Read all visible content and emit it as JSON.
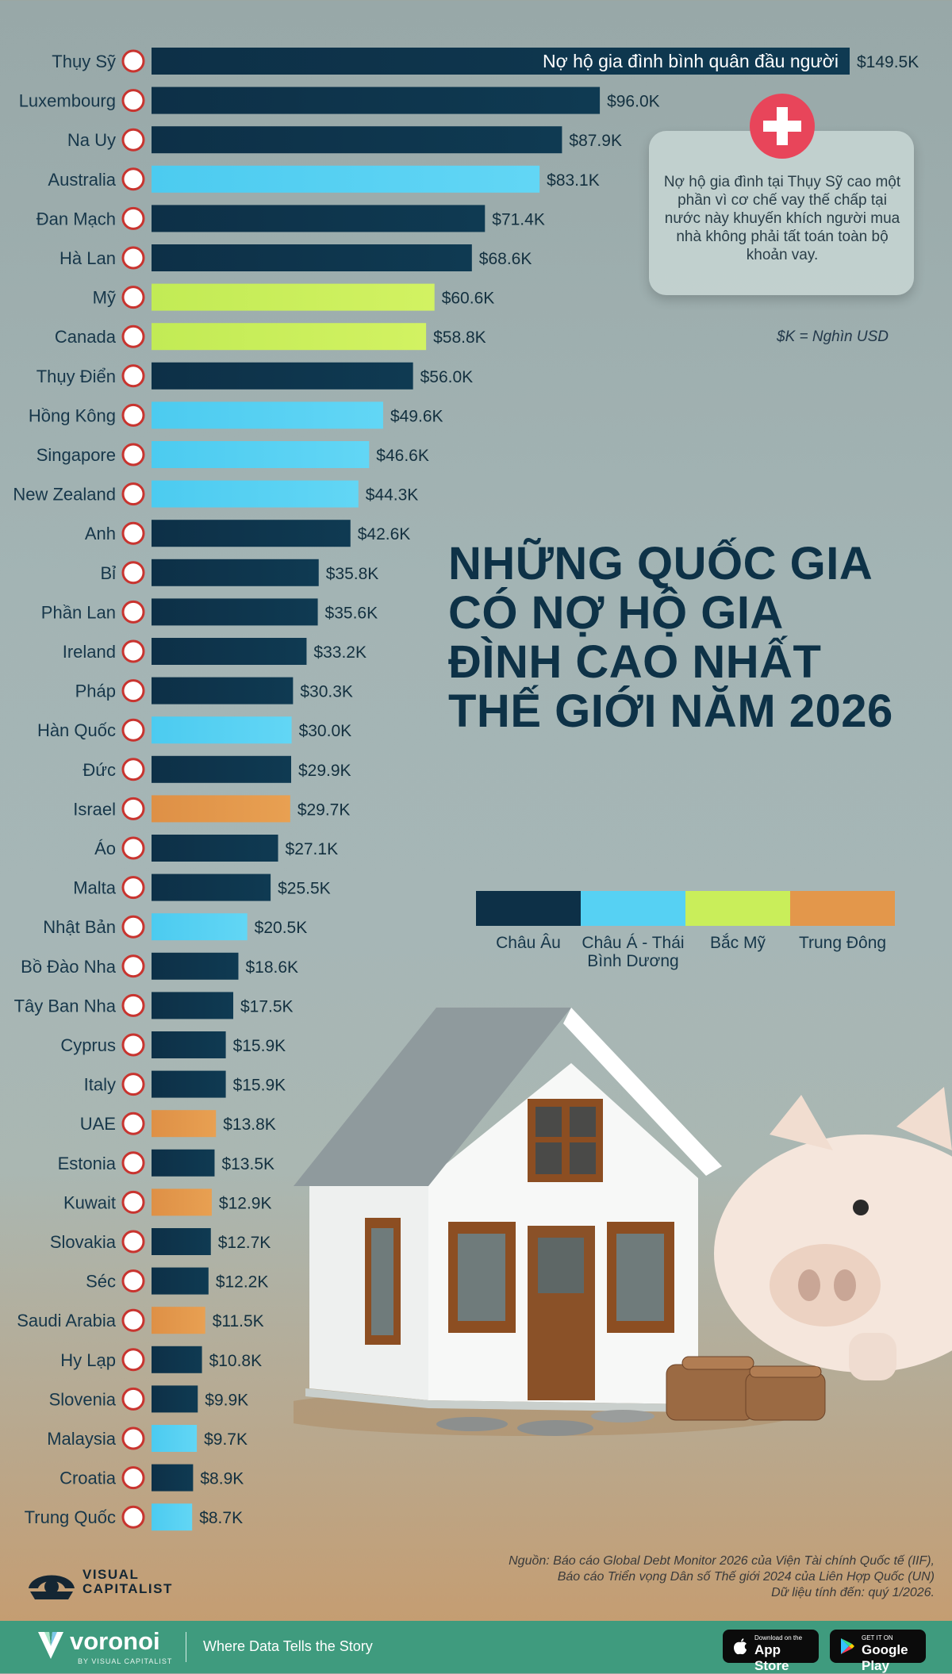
{
  "chart_data": {
    "type": "bar",
    "orientation": "horizontal",
    "title": "NHỮNG QUỐC GIA CÓ NỢ HỘ GIA ĐÌNH CAO NHẤT THẾ GIỚI NĂM 2026",
    "bar_caption": "Nợ hộ gia đình bình quân đầu người",
    "unit_note": "$K = Nghìn USD",
    "xlim": [
      0,
      149.5
    ],
    "legend": [
      {
        "label": "Châu Âu",
        "color": "#0d3047"
      },
      {
        "label": "Châu Á - Thái Bình Dương",
        "color": "#56d1f3"
      },
      {
        "label": "Bắc Mỹ",
        "color": "#c9ee5a"
      },
      {
        "label": "Trung Đông",
        "color": "#e3974b"
      }
    ],
    "categories": [
      "Thụy Sỹ",
      "Luxembourg",
      "Na Uy",
      "Australia",
      "Đan Mạch",
      "Hà Lan",
      "Mỹ",
      "Canada",
      "Thụy Điển",
      "Hồng Kông",
      "Singapore",
      "New Zealand",
      "Anh",
      "Bỉ",
      "Phần Lan",
      "Ireland",
      "Pháp",
      "Hàn Quốc",
      "Đức",
      "Israel",
      "Áo",
      "Malta",
      "Nhật Bản",
      "Bồ Đào Nha",
      "Tây Ban Nha",
      "Cyprus",
      "Italy",
      "UAE",
      "Estonia",
      "Kuwait",
      "Slovakia",
      "Séc",
      "Saudi Arabia",
      "Hy Lạp",
      "Slovenia",
      "Malaysia",
      "Croatia",
      "Trung Quốc"
    ],
    "values": [
      149.5,
      96.0,
      87.9,
      83.1,
      71.4,
      68.6,
      60.6,
      58.8,
      56.0,
      49.6,
      46.6,
      44.3,
      42.6,
      35.8,
      35.6,
      33.2,
      30.3,
      30.0,
      29.9,
      29.7,
      27.1,
      25.5,
      20.5,
      18.6,
      17.5,
      15.9,
      15.9,
      13.8,
      13.5,
      12.9,
      12.7,
      12.2,
      11.5,
      10.8,
      9.9,
      9.7,
      8.9,
      8.7
    ],
    "value_labels": [
      "$149.5K",
      "$96.0K",
      "$87.9K",
      "$83.1K",
      "$71.4K",
      "$68.6K",
      "$60.6K",
      "$58.8K",
      "$56.0K",
      "$49.6K",
      "$46.6K",
      "$44.3K",
      "$42.6K",
      "$35.8K",
      "$35.6K",
      "$33.2K",
      "$30.3K",
      "$30.0K",
      "$29.9K",
      "$29.7K",
      "$27.1K",
      "$25.5K",
      "$20.5K",
      "$18.6K",
      "$17.5K",
      "$15.9K",
      "$15.9K",
      "$13.8K",
      "$13.5K",
      "$12.9K",
      "$12.7K",
      "$12.2K",
      "$11.5K",
      "$10.8K",
      "$9.9K",
      "$9.7K",
      "$8.9K",
      "$8.7K"
    ],
    "regions": [
      0,
      0,
      0,
      1,
      0,
      0,
      2,
      2,
      0,
      1,
      1,
      1,
      0,
      0,
      0,
      0,
      0,
      1,
      0,
      3,
      0,
      0,
      1,
      0,
      0,
      0,
      0,
      3,
      0,
      3,
      0,
      0,
      3,
      0,
      0,
      1,
      0,
      1
    ]
  },
  "title_lines": [
    "NHỮNG QUỐC GIA",
    "CÓ NỢ HỘ GIA",
    "ĐÌNH CAO NHẤT",
    "THẾ GIỚI NĂM 2026"
  ],
  "callout": {
    "text": "Nợ hộ gia đình tại Thụy Sỹ cao một phần vì cơ chế vay thế chấp tại nước này khuyến khích người mua nhà không phải tất toán toàn bộ khoản vay.",
    "icon": "swiss-flag-icon",
    "icon_color": "#e8455a"
  },
  "source": {
    "line1": "Nguồn: Báo cáo Global Debt Monitor 2026 của Viện Tài chính Quốc tế (IIF),",
    "line2": "Báo cáo Triển vọng Dân số Thế giới 2024 của Liên Hợp Quốc  (UN)",
    "line3": "Dữ liệu tính đến: quý 1/2026."
  },
  "brand": {
    "vc_line1": "VISUAL",
    "vc_line2": "CAPITALIST",
    "voronoi": "voronoi",
    "voronoi_sub": "BY VISUAL CAPITALIST",
    "tagline": "Where Data Tells the Story",
    "app_store_small": "Download on the",
    "app_store": "App Store",
    "google_play_small": "GET IT ON",
    "google_play": "Google Play"
  }
}
